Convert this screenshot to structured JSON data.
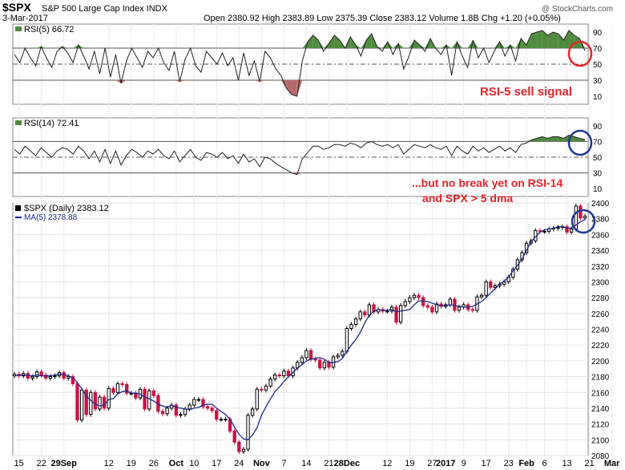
{
  "header": {
    "symbol": "$SPX",
    "description": "S&P 500 Large Cap Index INDX",
    "date": "3-Mar-2017",
    "ohlc": "Open 2380.92  High 2383.89  Low 2375.39  Close 2383.12  Volume 1.8B  Chg +1.20 (+0.05%)",
    "credit": "@ StockCharts.com"
  },
  "annotations": {
    "rsi5_signal": "RSI-5 sell signal",
    "rsi14_line1": "...but no break yet on RSI-14",
    "rsi14_line2": "and SPX > 5 dma"
  },
  "colors": {
    "up_candle": "#000000",
    "down_candle": "#cc1144",
    "ma_line": "#1f2a8c",
    "overbought_fill": "#4f8a3f",
    "oversold_fill": "#b56a6a",
    "annotation_text": "#e8222a",
    "red_circle": "#e8222a",
    "blue_circle": "#1f3a93"
  },
  "chart_data": [
    {
      "type": "line",
      "title": "RSI(5) 66.72",
      "ylim": [
        0,
        100
      ],
      "y_ticks": [
        10,
        30,
        50,
        70,
        90
      ],
      "reference_lines": [
        70,
        50,
        30
      ],
      "values": [
        62,
        52,
        70,
        58,
        48,
        72,
        58,
        46,
        66,
        72,
        64,
        52,
        74,
        60,
        44,
        66,
        38,
        70,
        34,
        62,
        26,
        54,
        70,
        58,
        46,
        66,
        58,
        70,
        52,
        42,
        66,
        28,
        56,
        70,
        48,
        40,
        66,
        58,
        50,
        64,
        48,
        58,
        30,
        64,
        36,
        54,
        28,
        66,
        58,
        44,
        36,
        20,
        12,
        10,
        54,
        78,
        86,
        80,
        66,
        76,
        86,
        80,
        70,
        84,
        74,
        60,
        80,
        88,
        72,
        66,
        78,
        62,
        76,
        44,
        60,
        80,
        74,
        66,
        82,
        70,
        62,
        74,
        36,
        78,
        60,
        46,
        80,
        58,
        70,
        52,
        66,
        78,
        60,
        74,
        54,
        82,
        74,
        88,
        90,
        92,
        86,
        90,
        88,
        80,
        92,
        86,
        82,
        66.72
      ]
    },
    {
      "type": "line",
      "title": "RSI(14) 72.41",
      "ylim": [
        0,
        100
      ],
      "y_ticks": [
        10,
        30,
        50,
        70,
        90
      ],
      "reference_lines": [
        70,
        50,
        30
      ],
      "values": [
        60,
        54,
        64,
        58,
        52,
        62,
        56,
        50,
        58,
        62,
        60,
        54,
        64,
        58,
        48,
        58,
        44,
        60,
        42,
        58,
        40,
        52,
        60,
        56,
        50,
        58,
        54,
        60,
        52,
        48,
        58,
        44,
        52,
        60,
        50,
        46,
        56,
        54,
        50,
        56,
        48,
        52,
        42,
        54,
        44,
        48,
        38,
        50,
        48,
        42,
        38,
        34,
        30,
        28,
        48,
        56,
        64,
        64,
        60,
        62,
        66,
        66,
        64,
        68,
        66,
        62,
        68,
        70,
        66,
        64,
        66,
        62,
        66,
        54,
        60,
        66,
        64,
        62,
        66,
        62,
        60,
        64,
        52,
        64,
        58,
        54,
        64,
        58,
        62,
        56,
        60,
        64,
        58,
        62,
        56,
        66,
        68,
        72,
        74,
        76,
        74,
        76,
        76,
        74,
        78,
        76,
        74,
        72.41
      ]
    },
    {
      "type": "line",
      "title": "$SPX (Daily) 2383.12",
      "ma_label": "MA(5) 2378.88",
      "ylim": [
        2080,
        2400
      ],
      "y_ticks": [
        2080,
        2100,
        2120,
        2140,
        2160,
        2180,
        2200,
        2220,
        2240,
        2260,
        2280,
        2300,
        2320,
        2340,
        2360,
        2380,
        2400
      ],
      "x_tick_labels": [
        "15",
        "22",
        "29Sep",
        "12",
        "19",
        "26",
        "Oct",
        "10",
        "17",
        "24",
        "Nov",
        "7",
        "14",
        "21",
        "28Dec",
        "12",
        "19",
        "27",
        "2017",
        "9",
        "17",
        "23",
        "Feb",
        "6",
        "13",
        "21",
        "Mar"
      ],
      "x_tick_index": [
        1,
        6,
        11,
        21,
        26,
        31,
        36,
        40,
        45,
        50,
        55,
        60,
        65,
        70,
        74,
        83,
        88,
        93,
        96,
        100,
        105,
        110,
        114,
        118,
        123,
        128,
        133
      ],
      "series": [
        {
          "values": [
            2183,
            2181,
            2184,
            2178,
            2180,
            2186,
            2182,
            2178,
            2180,
            2181,
            2185,
            2178,
            2180,
            2171,
            2125,
            2163,
            2132,
            2160,
            2139,
            2154,
            2140,
            2165,
            2160,
            2171,
            2170,
            2159,
            2159,
            2153,
            2164,
            2139,
            2162,
            2156,
            2136,
            2133,
            2140,
            2144,
            2131,
            2132,
            2139,
            2144,
            2151,
            2151,
            2142,
            2140,
            2137,
            2126,
            2126,
            2126,
            2111,
            2097,
            2085,
            2088,
            2131,
            2139,
            2164,
            2163,
            2168,
            2177,
            2182,
            2181,
            2187,
            2181,
            2191,
            2198,
            2204,
            2213,
            2202,
            2201,
            2191,
            2198,
            2192,
            2205,
            2207,
            2212,
            2241,
            2246,
            2253,
            2262,
            2258,
            2271,
            2262,
            2265,
            2263,
            2263,
            2268,
            2249,
            2270,
            2275,
            2280,
            2283,
            2280,
            2270,
            2268,
            2262,
            2272,
            2269,
            2271,
            2278,
            2264,
            2268,
            2271,
            2265,
            2264,
            2281,
            2283,
            2300,
            2293,
            2295,
            2297,
            2300,
            2306,
            2316,
            2328,
            2337,
            2349,
            2352,
            2365,
            2364,
            2364,
            2367,
            2368,
            2369,
            2370,
            2363,
            2367,
            2396,
            2381,
            2383.12
          ]
        },
        {
          "name": "MA(5)",
          "values": [
            2181,
            2182,
            2182,
            2182,
            2181,
            2182,
            2181,
            2181,
            2181,
            2182,
            2183,
            2183,
            2181,
            2179,
            2172,
            2165,
            2155,
            2150,
            2145,
            2143,
            2144,
            2151,
            2152,
            2158,
            2161,
            2162,
            2159,
            2159,
            2158,
            2154,
            2152,
            2149,
            2145,
            2143,
            2141,
            2144,
            2141,
            2140,
            2139,
            2138,
            2140,
            2141,
            2144,
            2145,
            2145,
            2140,
            2136,
            2132,
            2126,
            2116,
            2107,
            2101,
            2100,
            2106,
            2115,
            2131,
            2142,
            2152,
            2161,
            2167,
            2174,
            2180,
            2185,
            2191,
            2195,
            2200,
            2202,
            2203,
            2204,
            2202,
            2198,
            2198,
            2199,
            2203,
            2212,
            2220,
            2227,
            2236,
            2248,
            2258,
            2263,
            2265,
            2264,
            2264,
            2265,
            2262,
            2263,
            2264,
            2265,
            2271,
            2276,
            2276,
            2275,
            2273,
            2271,
            2270,
            2270,
            2271,
            2270,
            2269,
            2268,
            2268,
            2269,
            2272,
            2275,
            2280,
            2286,
            2291,
            2297,
            2301,
            2306,
            2314,
            2321,
            2329,
            2340,
            2351,
            2357,
            2363,
            2366,
            2367,
            2368,
            2370,
            2370,
            2368,
            2368,
            2372,
            2376,
            2378.88
          ]
        }
      ]
    }
  ]
}
